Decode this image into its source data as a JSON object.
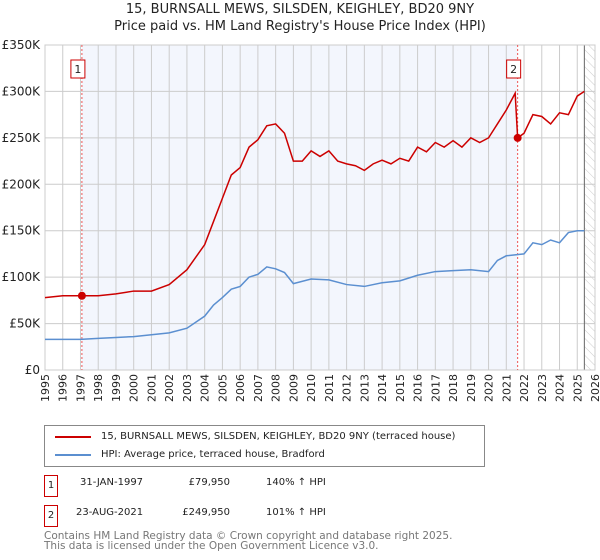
{
  "title": "15, BURNSALL MEWS, SILSDEN, KEIGHLEY, BD20 9NY",
  "subtitle": "Price paid vs. HM Land Registry's House Price Index (HPI)",
  "chart_data": {
    "type": "line",
    "title": "15, BURNSALL MEWS, SILSDEN, KEIGHLEY, BD20 9NY",
    "subtitle": "Price paid vs. HM Land Registry's House Price Index (HPI)",
    "xlim": [
      1995,
      2026
    ],
    "ylim": [
      0,
      350000
    ],
    "y_ticks": [
      0,
      50000,
      100000,
      150000,
      200000,
      250000,
      300000,
      350000
    ],
    "y_tick_labels": [
      "£0",
      "£50K",
      "£100K",
      "£150K",
      "£200K",
      "£250K",
      "£300K",
      "£350K"
    ],
    "x_ticks": [
      1995,
      1996,
      1997,
      1998,
      1999,
      2000,
      2001,
      2002,
      2003,
      2004,
      2005,
      2006,
      2007,
      2008,
      2009,
      2010,
      2011,
      2012,
      2013,
      2014,
      2015,
      2016,
      2017,
      2018,
      2019,
      2020,
      2021,
      2022,
      2023,
      2024,
      2025,
      2026
    ],
    "grid": true,
    "series": [
      {
        "name": "15, BURNSALL MEWS, SILSDEN, KEIGHLEY, BD20 9NY (terraced house)",
        "color": "#cc0000",
        "x": [
          1995,
          1996,
          1997.08,
          1998,
          1999,
          2000,
          2001,
          2002,
          2003,
          2004,
          2004.5,
          2005,
          2005.5,
          2006,
          2006.5,
          2007,
          2007.5,
          2008,
          2008.5,
          2009,
          2009.5,
          2010,
          2010.5,
          2011,
          2011.5,
          2012,
          2012.5,
          2013,
          2013.5,
          2014,
          2014.5,
          2015,
          2015.5,
          2016,
          2016.5,
          2017,
          2017.5,
          2018,
          2018.5,
          2019,
          2019.5,
          2020,
          2020.5,
          2021,
          2021.5,
          2021.64,
          2022,
          2022.5,
          2023,
          2023.5,
          2024,
          2024.5,
          2025,
          2025.4
        ],
        "y": [
          78000,
          80000,
          79950,
          80000,
          82000,
          85000,
          85000,
          92000,
          108000,
          135000,
          160000,
          185000,
          210000,
          218000,
          240000,
          248000,
          263000,
          265000,
          255000,
          225000,
          225000,
          236000,
          230000,
          236000,
          225000,
          222000,
          220000,
          215000,
          222000,
          226000,
          222000,
          228000,
          225000,
          240000,
          235000,
          245000,
          240000,
          247000,
          240000,
          250000,
          245000,
          250000,
          265000,
          280000,
          298000,
          249950,
          255000,
          275000,
          273000,
          265000,
          277000,
          275000,
          295000,
          300000
        ]
      },
      {
        "name": "HPI: Average price, terraced house, Bradford",
        "color": "#5b8fd0",
        "x": [
          1995,
          1997,
          1998,
          1999,
          2000,
          2001,
          2002,
          2003,
          2004,
          2004.5,
          2005,
          2005.5,
          2006,
          2006.5,
          2007,
          2007.5,
          2008,
          2008.5,
          2009,
          2010,
          2011,
          2012,
          2013,
          2014,
          2015,
          2016,
          2017,
          2018,
          2019,
          2020,
          2020.5,
          2021,
          2022,
          2022.5,
          2023,
          2023.5,
          2024,
          2024.5,
          2025,
          2025.4
        ],
        "y": [
          33000,
          33000,
          34000,
          35000,
          36000,
          38000,
          40000,
          45000,
          58000,
          70000,
          78000,
          87000,
          90000,
          100000,
          103000,
          111000,
          109000,
          105000,
          93000,
          98000,
          97000,
          92000,
          90000,
          94000,
          96000,
          102000,
          106000,
          107000,
          108000,
          106000,
          118000,
          123000,
          125000,
          137000,
          135000,
          140000,
          137000,
          148000,
          150000,
          150000
        ]
      }
    ],
    "annotations": [
      {
        "label": "1",
        "x": 1997.08,
        "y": 79950
      },
      {
        "label": "2",
        "x": 2021.64,
        "y": 249950
      }
    ]
  },
  "legend": {
    "items": [
      "15, BURNSALL MEWS, SILSDEN, KEIGHLEY, BD20 9NY (terraced house)",
      "HPI: Average price, terraced house, Bradford"
    ]
  },
  "sales": [
    {
      "num": "1",
      "date": "31-JAN-1997",
      "price": "£79,950",
      "hpi": "140% ↑ HPI"
    },
    {
      "num": "2",
      "date": "23-AUG-2021",
      "price": "£249,950",
      "hpi": "101% ↑ HPI"
    }
  ],
  "footer": {
    "line1": "Contains HM Land Registry data © Crown copyright and database right 2025.",
    "line2": "This data is licensed under the Open Government Licence v3.0."
  }
}
